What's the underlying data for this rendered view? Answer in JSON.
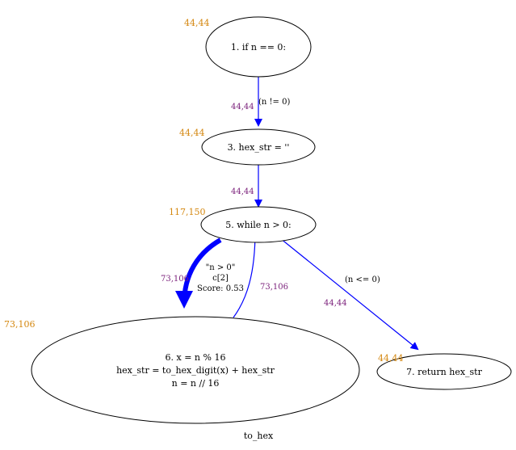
{
  "caption": "to_hex",
  "colors": {
    "edge": "#0000ff",
    "node_count": "#d4870f",
    "edge_count": "#7a1f7a",
    "node_stroke": "#000000"
  },
  "nodes": {
    "n1": {
      "label": "1. if n == 0:",
      "count": "44,44"
    },
    "n3": {
      "label": "3. hex_str = ''",
      "count": "44,44"
    },
    "n5": {
      "label": "5. while n > 0:",
      "count": "117,150"
    },
    "n6": {
      "lines": [
        "6. x = n % 16",
        "hex_str = to_hex_digit(x) + hex_str",
        "n = n // 16"
      ],
      "count": "73,106"
    },
    "n7": {
      "label": "7. return hex_str",
      "count": "44,44"
    }
  },
  "edges": {
    "e1_3": {
      "label": "(n != 0)",
      "count": "44,44"
    },
    "e3_5": {
      "count": "44,44"
    },
    "e5_6": {
      "lines": [
        "\"n > 0\"",
        "c[2]",
        "Score: 0.53"
      ],
      "count": "73,106"
    },
    "e6_5": {
      "count": "73,106"
    },
    "e5_7": {
      "label": "(n <= 0)",
      "count": "44,44"
    }
  }
}
